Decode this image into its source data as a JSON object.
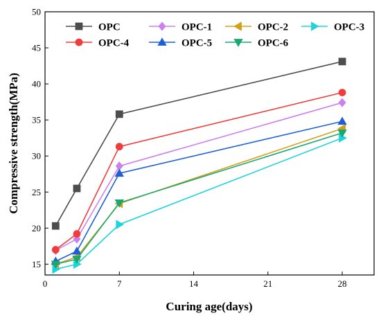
{
  "chart_data": {
    "type": "line",
    "xlabel": "Curing age(days)",
    "ylabel": "Compressive strength(MPa)",
    "xlim": [
      0,
      31
    ],
    "ylim": [
      13.5,
      50
    ],
    "xticks": [
      0,
      7,
      14,
      21,
      28
    ],
    "yticks": [
      15,
      20,
      25,
      30,
      35,
      40,
      45,
      50
    ],
    "grid": false,
    "legend_position": "top",
    "x": [
      1,
      3,
      7,
      28
    ],
    "series": [
      {
        "name": "OPC",
        "color": "#4d4d4d",
        "marker": "square",
        "values": [
          20.3,
          25.5,
          35.8,
          43.1
        ]
      },
      {
        "name": "OPC-1",
        "color": "#cc80f0",
        "marker": "diamond",
        "values": [
          16.9,
          18.5,
          28.6,
          37.4
        ]
      },
      {
        "name": "OPC-2",
        "color": "#d4a017",
        "marker": "triangle-left",
        "values": [
          15.0,
          16.0,
          23.4,
          33.8
        ]
      },
      {
        "name": "OPC-3",
        "color": "#1ed3dc",
        "marker": "triangle-right",
        "values": [
          14.3,
          15.0,
          20.5,
          32.5
        ]
      },
      {
        "name": "OPC-4",
        "color": "#f03c3c",
        "marker": "circle",
        "values": [
          17.0,
          19.2,
          31.3,
          38.8
        ]
      },
      {
        "name": "OPC-5",
        "color": "#1f5fd6",
        "marker": "triangle-up",
        "values": [
          15.4,
          16.8,
          27.6,
          34.8
        ]
      },
      {
        "name": "OPC-6",
        "color": "#1aa870",
        "marker": "triangle-down",
        "values": [
          15.0,
          15.7,
          23.5,
          33.2
        ]
      }
    ]
  }
}
